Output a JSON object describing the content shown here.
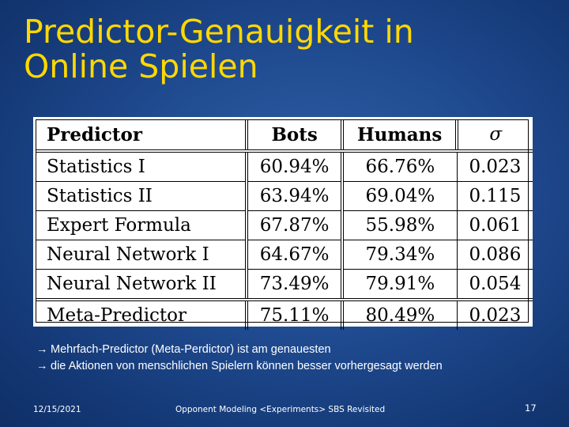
{
  "title": {
    "line1": "Predictor-Genauigkeit in",
    "line2": "Online Spielen"
  },
  "table": {
    "headers": [
      "Predictor",
      "Bots",
      "Humans",
      "σ"
    ],
    "rows": [
      [
        "Statistics I",
        "60.94%",
        "66.76%",
        "0.023"
      ],
      [
        "Statistics II",
        "63.94%",
        "69.04%",
        "0.115"
      ],
      [
        "Expert Formula",
        "67.87%",
        "55.98%",
        "0.061"
      ],
      [
        "Neural Network I",
        "64.67%",
        "79.34%",
        "0.086"
      ],
      [
        "Neural Network II",
        "73.49%",
        "79.91%",
        "0.054"
      ]
    ],
    "meta_row": [
      "Meta-Predictor",
      "75.11%",
      "80.49%",
      "0.023"
    ]
  },
  "bullets": [
    {
      "arrow": "→",
      "text": "Mehrfach-Predictor (Meta-Perdictor) ist am genauesten"
    },
    {
      "arrow": "→",
      "text": "die Aktionen von menschlichen Spielern können besser vorhergesagt werden"
    }
  ],
  "footer": {
    "date": "12/15/2021",
    "center": "Opponent Modeling <Experiments> SBS Revisited",
    "page": "17"
  },
  "colors": {
    "title": "#ffd800",
    "background": "#1f4a8f",
    "text": "#ffffff"
  }
}
